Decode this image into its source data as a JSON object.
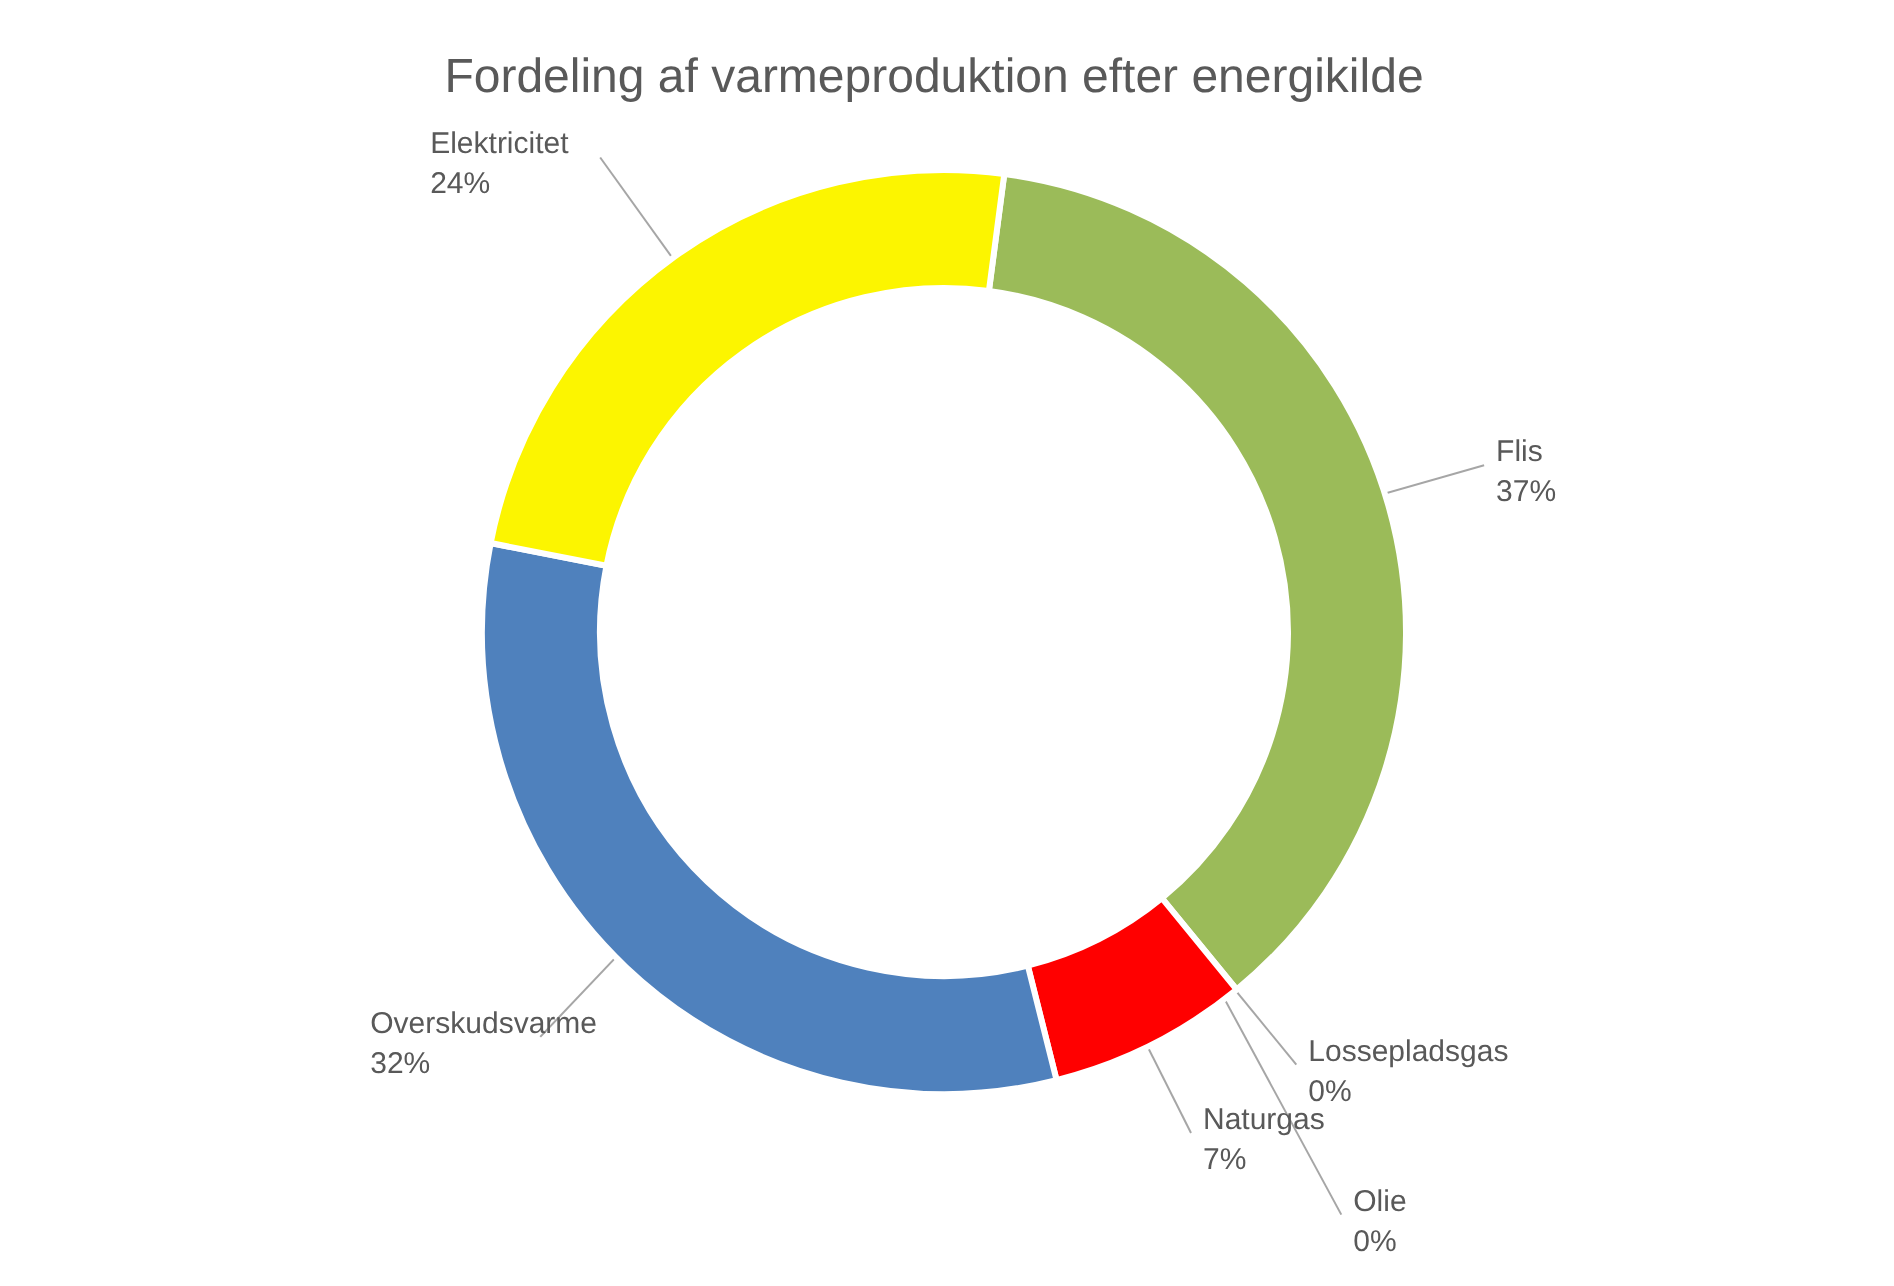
{
  "chart_data": {
    "type": "donut",
    "title": "Fordeling af varmeproduktion efter energikilde",
    "categories": [
      "Flis",
      "Lossepladsgas",
      "Olie",
      "Naturgas",
      "Overskudsvarme",
      "Elektricitet"
    ],
    "values": [
      37,
      0,
      0,
      7,
      32,
      24
    ],
    "value_labels": [
      "37%",
      "0%",
      "0%",
      "7%",
      "32%",
      "24%"
    ],
    "colors": [
      "#9bbb59",
      "#8064a2",
      "#4bacc6",
      "#ff0000",
      "#4f81bd",
      "#fcf500"
    ],
    "legend": false
  }
}
